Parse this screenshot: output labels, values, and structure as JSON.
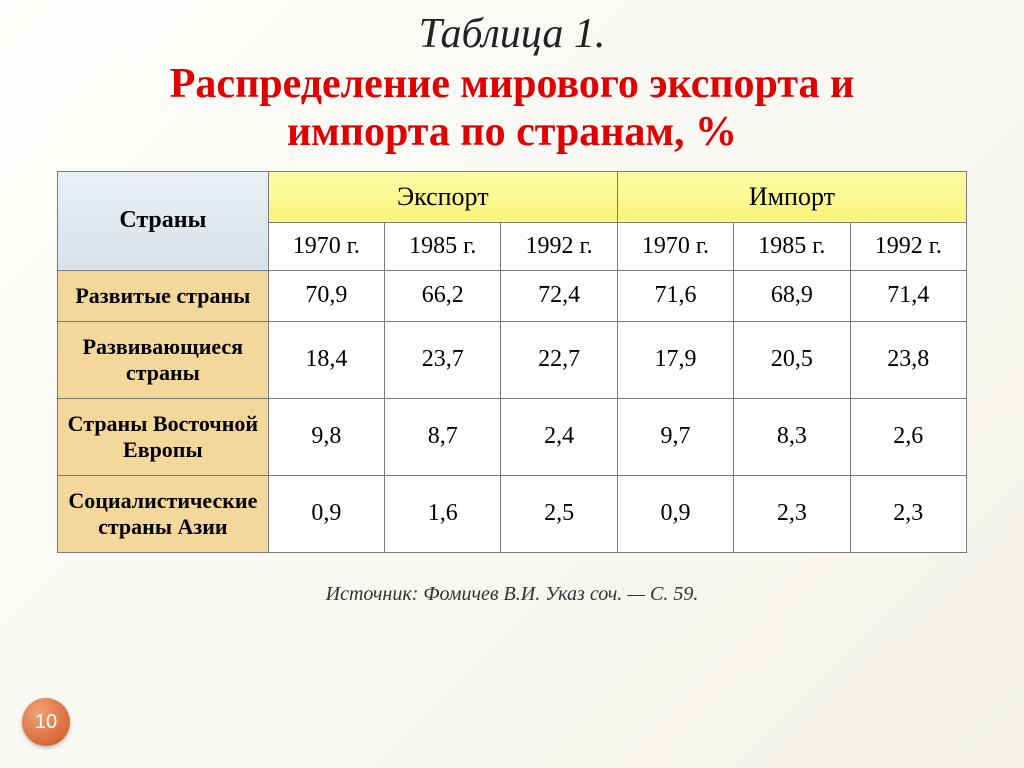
{
  "title_1": "Таблица 1.",
  "title_2_line1": "Распределение мирового экспорта и",
  "title_2_line2": "импорта по странам, %",
  "header": {
    "countries": "Страны",
    "export": "Экспорт",
    "import": "Импорт",
    "years": [
      "1970 г.",
      "1985 г.",
      "1992 г.",
      "1970 г.",
      "1985 г.",
      "1992 г."
    ]
  },
  "rows": [
    {
      "label": "Развитые страны",
      "cells": [
        "70,9",
        "66,2",
        "72,4",
        "71,6",
        "68,9",
        "71,4"
      ]
    },
    {
      "label": "Развивающиеся страны",
      "cells": [
        "18,4",
        "23,7",
        "22,7",
        "17,9",
        "20,5",
        "23,8"
      ]
    },
    {
      "label": "Страны Восточной Европы",
      "cells": [
        "9,8",
        "8,7",
        "2,4",
        "9,7",
        "8,3",
        "2,6"
      ]
    },
    {
      "label": "Социалистические страны Азии",
      "cells": [
        "0,9",
        "1,6",
        "2,5",
        "0,9",
        "2,3",
        "2,3"
      ]
    }
  ],
  "source": "Источник: Фомичев В.И. Указ соч. — С. 59.",
  "page_number": "10",
  "style": {
    "header_countries_bg": "#e2eaf0",
    "header_group_bg": "#faf68a",
    "row_head_bg": "#f4d79a",
    "title_color": "#e00000",
    "border_color": "#7a7a7a",
    "cell_bg": "#ffffff",
    "body_bg": "#faf8f0",
    "title_fontsize_pt": 32,
    "cell_fontsize_pt": 18,
    "source_fontsize_pt": 15
  }
}
